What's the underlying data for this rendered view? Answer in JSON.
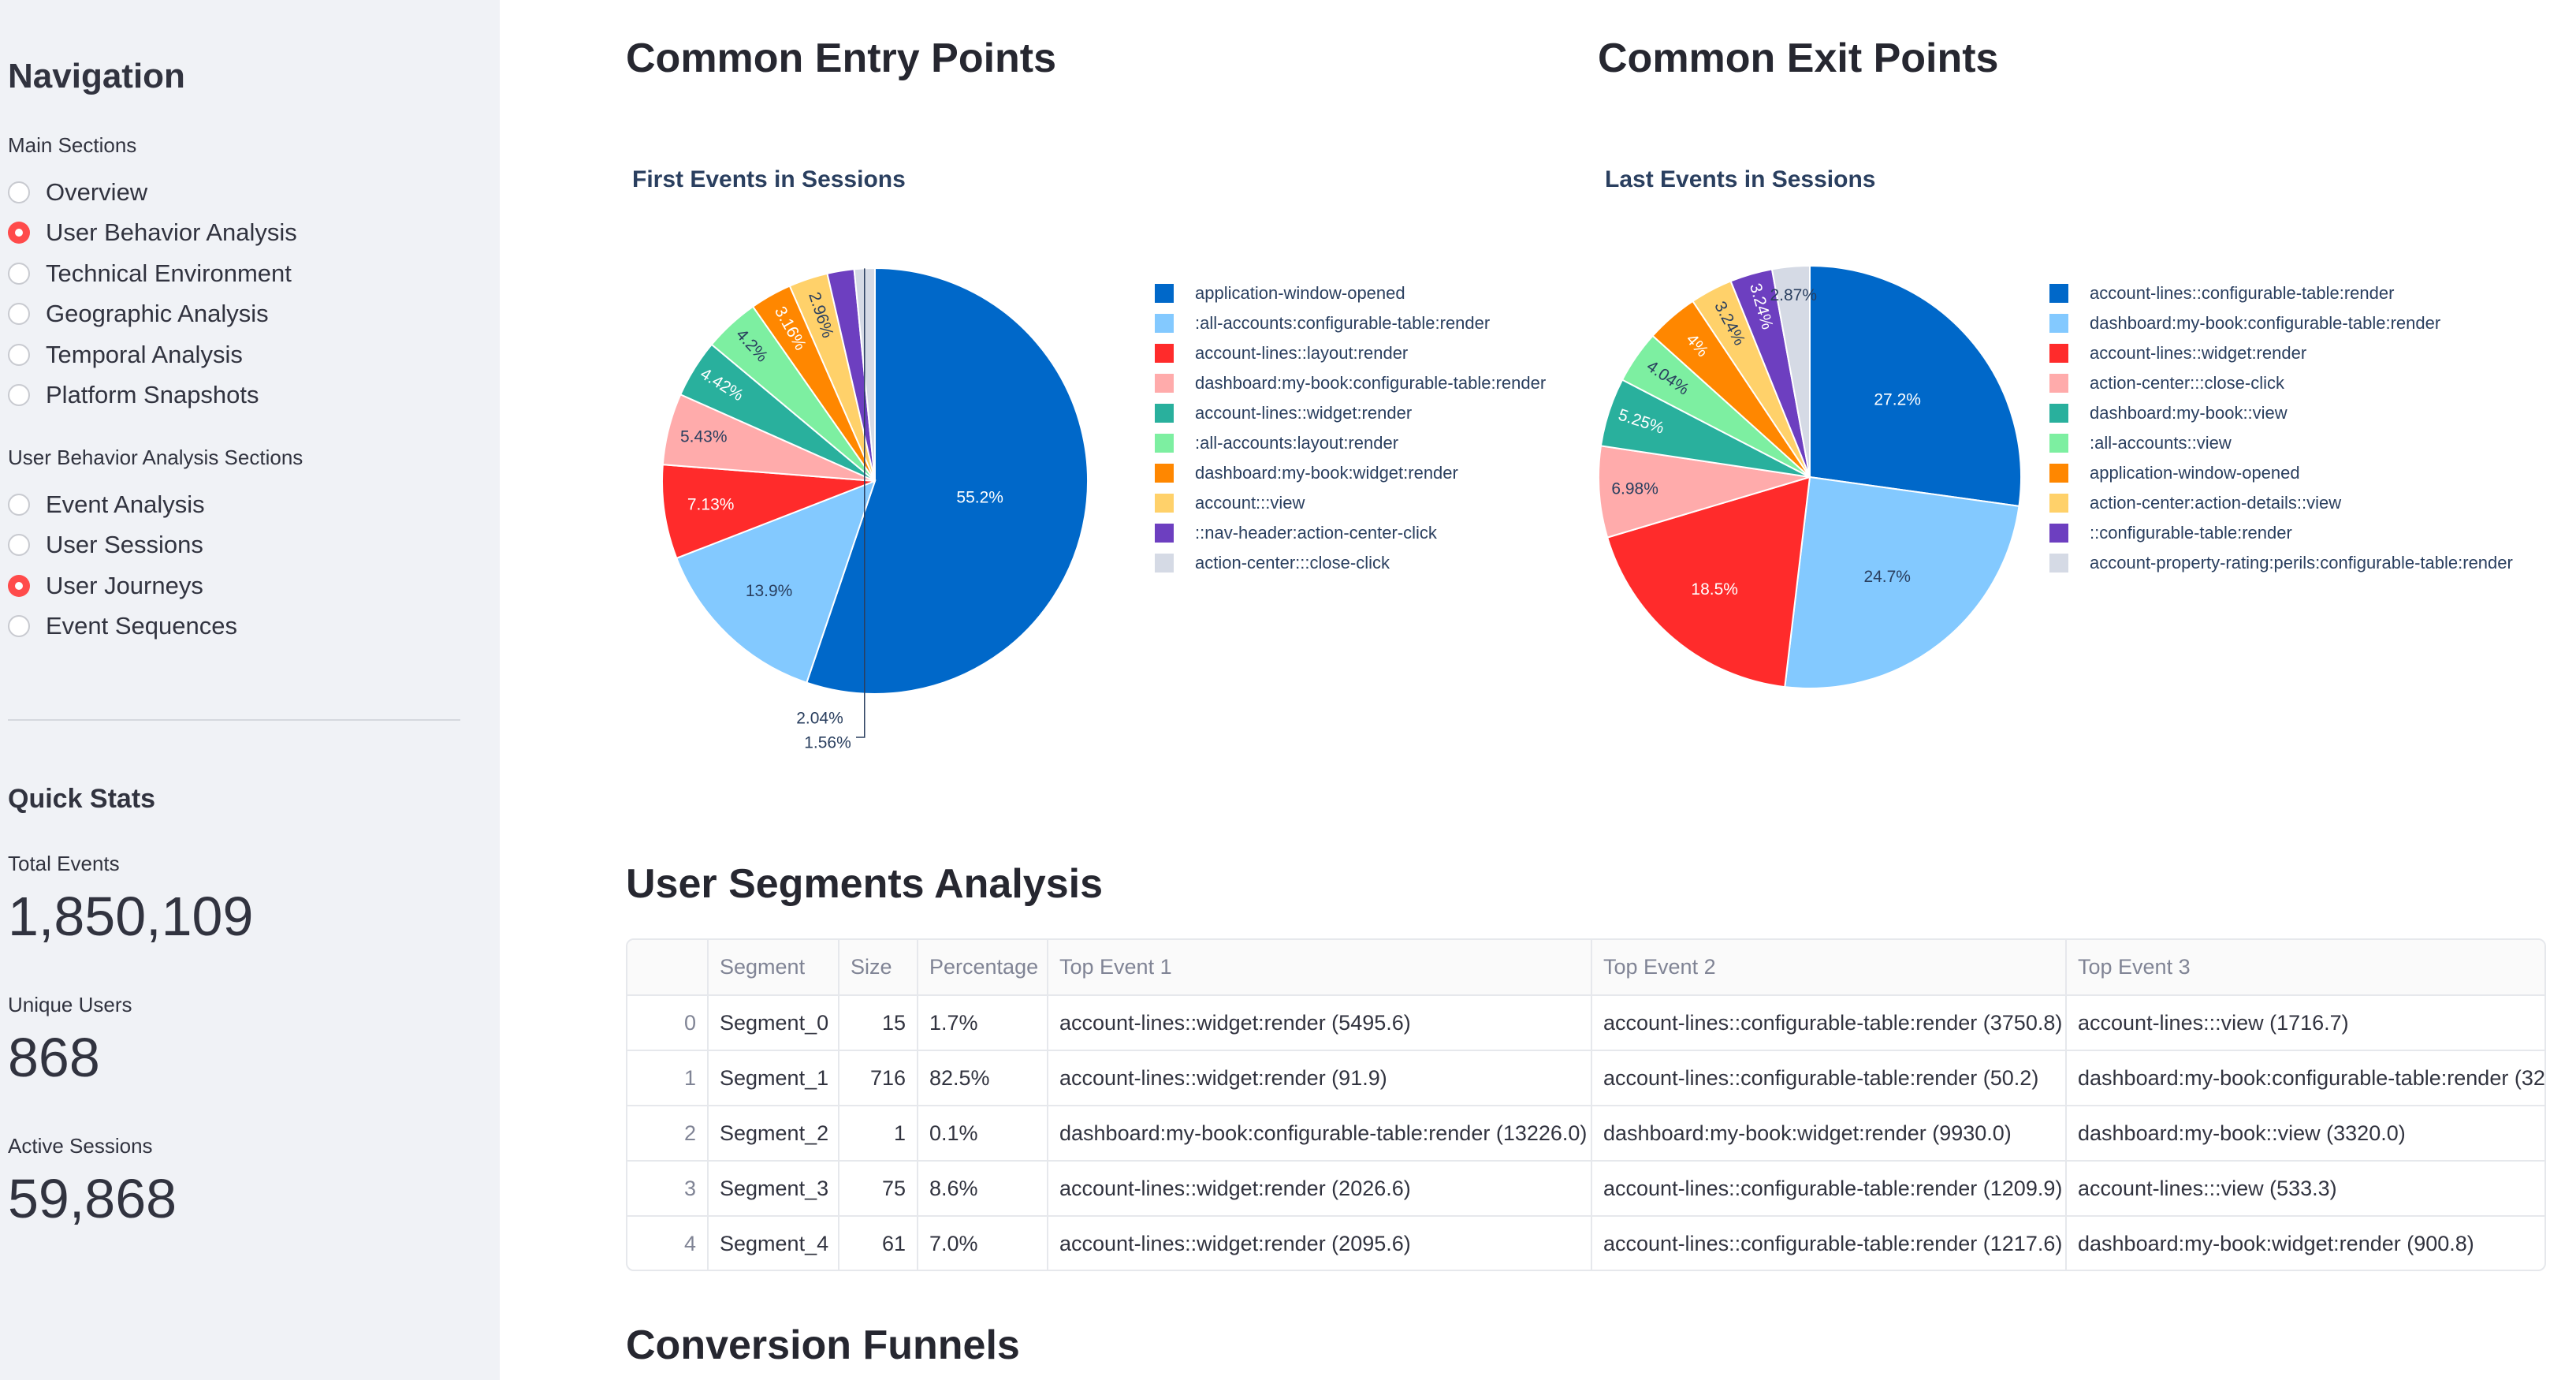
{
  "sidebar": {
    "title": "Navigation",
    "main_sections_label": "Main Sections",
    "main_sections": [
      {
        "label": "Overview",
        "selected": false
      },
      {
        "label": "User Behavior Analysis",
        "selected": true
      },
      {
        "label": "Technical Environment",
        "selected": false
      },
      {
        "label": "Geographic Analysis",
        "selected": false
      },
      {
        "label": "Temporal Analysis",
        "selected": false
      },
      {
        "label": "Platform Snapshots",
        "selected": false
      }
    ],
    "sub_sections_label": "User Behavior Analysis Sections",
    "sub_sections": [
      {
        "label": "Event Analysis",
        "selected": false
      },
      {
        "label": "User Sessions",
        "selected": false
      },
      {
        "label": "User Journeys",
        "selected": true
      },
      {
        "label": "Event Sequences",
        "selected": false
      }
    ],
    "stats_title": "Quick Stats",
    "stats": [
      {
        "label": "Total Events",
        "value": "1,850,109"
      },
      {
        "label": "Unique Users",
        "value": "868"
      },
      {
        "label": "Active Sessions",
        "value": "59,868"
      }
    ]
  },
  "main": {
    "entry_title": "Common Entry Points",
    "exit_title": "Common Exit Points",
    "segments_title": "User Segments Analysis",
    "funnels_title": "Conversion Funnels"
  },
  "chart_data": [
    {
      "type": "pie",
      "title": "First Events in Sessions",
      "labels": [
        "application-window-opened",
        ":all-accounts:configurable-table:render",
        "account-lines::layout:render",
        "dashboard:my-book:configurable-table:render",
        "account-lines::widget:render",
        ":all-accounts:layout:render",
        "dashboard:my-book:widget:render",
        "account:::view",
        "::nav-header:action-center-click",
        "action-center:::close-click"
      ],
      "values": [
        55.2,
        13.9,
        7.13,
        5.43,
        4.42,
        4.2,
        3.16,
        2.96,
        2.04,
        1.56
      ],
      "value_labels": [
        "55.2%",
        "13.9%",
        "7.13%",
        "5.43%",
        "4.42%",
        "4.2%",
        "3.16%",
        "2.96%",
        "2.04%",
        "1.56%"
      ],
      "colors": [
        "#0068c9",
        "#83c9ff",
        "#ff2b2b",
        "#ffabab",
        "#29b09d",
        "#7defa1",
        "#ff8700",
        "#ffd16a",
        "#6d3fc0",
        "#d5dae5"
      ]
    },
    {
      "type": "pie",
      "title": "Last Events in Sessions",
      "labels": [
        "account-lines::configurable-table:render",
        "dashboard:my-book:configurable-table:render",
        "account-lines::widget:render",
        "action-center:::close-click",
        "dashboard:my-book::view",
        ":all-accounts::view",
        "application-window-opened",
        "action-center:action-details::view",
        "::configurable-table:render",
        "account-property-rating:perils:configurable-table:render"
      ],
      "values": [
        27.2,
        24.7,
        18.5,
        6.98,
        5.25,
        4.04,
        4.0,
        3.24,
        3.24,
        2.87
      ],
      "value_labels": [
        "27.2%",
        "24.7%",
        "18.5%",
        "6.98%",
        "5.25%",
        "4.04%",
        "4%",
        "3.24%",
        "3.24%",
        "2.87%"
      ],
      "colors": [
        "#0068c9",
        "#83c9ff",
        "#ff2b2b",
        "#ffabab",
        "#29b09d",
        "#7defa1",
        "#ff8700",
        "#ffd16a",
        "#6d3fc0",
        "#d5dae5"
      ]
    }
  ],
  "segments_table": {
    "columns": [
      "",
      "Segment",
      "Size",
      "Percentage",
      "Top Event 1",
      "Top Event 2",
      "Top Event 3"
    ],
    "rows": [
      [
        "0",
        "Segment_0",
        "15",
        "1.7%",
        "account-lines::widget:render (5495.6)",
        "account-lines::configurable-table:render (3750.8)",
        "account-lines:::view (1716.7)"
      ],
      [
        "1",
        "Segment_1",
        "716",
        "82.5%",
        "account-lines::widget:render (91.9)",
        "account-lines::configurable-table:render (50.2)",
        "dashboard:my-book:configurable-table:render (32."
      ],
      [
        "2",
        "Segment_2",
        "1",
        "0.1%",
        "dashboard:my-book:configurable-table:render (13226.0)",
        "dashboard:my-book:widget:render (9930.0)",
        "dashboard:my-book::view (3320.0)"
      ],
      [
        "3",
        "Segment_3",
        "75",
        "8.6%",
        "account-lines::widget:render (2026.6)",
        "account-lines::configurable-table:render (1209.9)",
        "account-lines:::view (533.3)"
      ],
      [
        "4",
        "Segment_4",
        "61",
        "7.0%",
        "account-lines::widget:render (2095.6)",
        "account-lines::configurable-table:render (1217.6)",
        "dashboard:my-book:widget:render (900.8)"
      ]
    ]
  }
}
